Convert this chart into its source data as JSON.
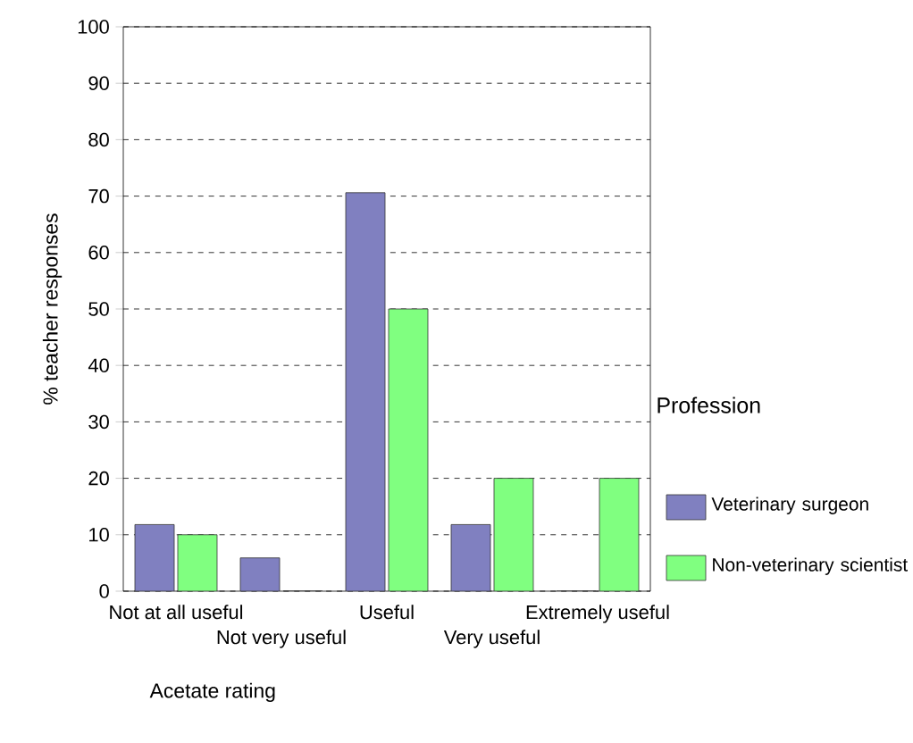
{
  "chart_data": {
    "type": "bar",
    "xlabel": "Acetate rating",
    "ylabel": "% teacher responses",
    "legend_title": "Profession",
    "categories": [
      "Not at all useful",
      "Not very useful",
      "Useful",
      "Very useful",
      "Extremely useful"
    ],
    "series": [
      {
        "name": "Veterinary surgeon",
        "color": "#8080c0",
        "values": [
          11.8,
          5.9,
          70.6,
          11.8,
          0
        ]
      },
      {
        "name": "Non-veterinary scientist",
        "color": "#80ff80",
        "values": [
          10,
          0,
          50,
          20,
          20
        ]
      }
    ],
    "ylim": [
      0,
      100
    ],
    "yticks": [
      0,
      10,
      20,
      30,
      40,
      50,
      60,
      70,
      80,
      90,
      100
    ],
    "grid": "y",
    "legend": "right"
  }
}
